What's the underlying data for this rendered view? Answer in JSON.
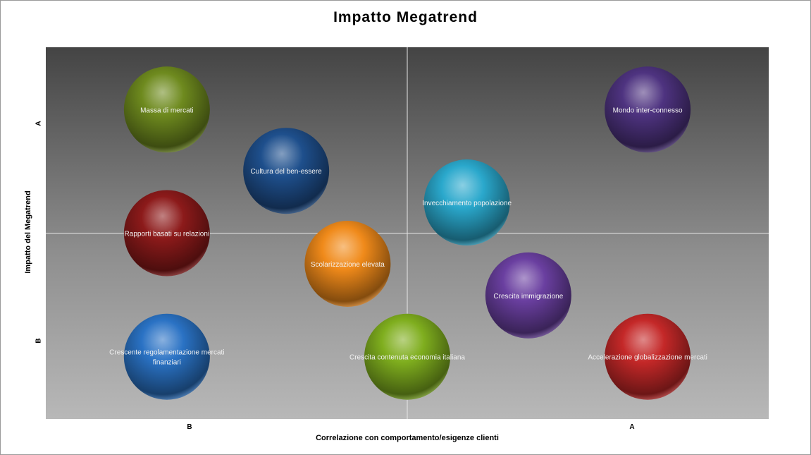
{
  "chart_data": {
    "type": "bubble",
    "title": "Impatto Megatrend",
    "xlabel": "Correlazione con comportamento/esigenze clienti",
    "ylabel": "Impatto del Megatrend",
    "xticks": [
      "B",
      "A"
    ],
    "yticks": [
      "A",
      "B"
    ],
    "xlim": [
      0,
      4
    ],
    "ylim": [
      0,
      4
    ],
    "quadrant_divider": {
      "x": 2,
      "y": 2
    },
    "background": "dark-to-light vertical gradient",
    "points": [
      {
        "label": "Massa di mercati",
        "x": 0.67,
        "y": 3.33,
        "color": "#6e8a1e"
      },
      {
        "label": "Cultura del ben-essere",
        "x": 1.33,
        "y": 2.67,
        "color": "#1e4f8c"
      },
      {
        "label": "Rapporti basati su relazioni",
        "x": 0.67,
        "y": 2.0,
        "color": "#8c1a1a"
      },
      {
        "label": "Scolarizzazione elevata",
        "x": 1.67,
        "y": 1.67,
        "color": "#f08a1a"
      },
      {
        "label": "Crescente regolamentazione mercati finanziari",
        "x": 0.67,
        "y": 0.67,
        "color": "#2a72c4"
      },
      {
        "label": "Crescita contenuta economia italiana",
        "x": 2.0,
        "y": 0.67,
        "color": "#7fae1e"
      },
      {
        "label": "Mondo inter-connesso",
        "x": 3.33,
        "y": 3.33,
        "color": "#4e3380"
      },
      {
        "label": "Invecchiamento popolazione",
        "x": 2.33,
        "y": 2.33,
        "color": "#2aa8cc"
      },
      {
        "label": "Crescita immigrazione",
        "x": 2.67,
        "y": 1.33,
        "color": "#6a3fa0"
      },
      {
        "label": "Accelerazione globalizzazione mercati",
        "x": 3.33,
        "y": 0.67,
        "color": "#c42828"
      }
    ]
  }
}
